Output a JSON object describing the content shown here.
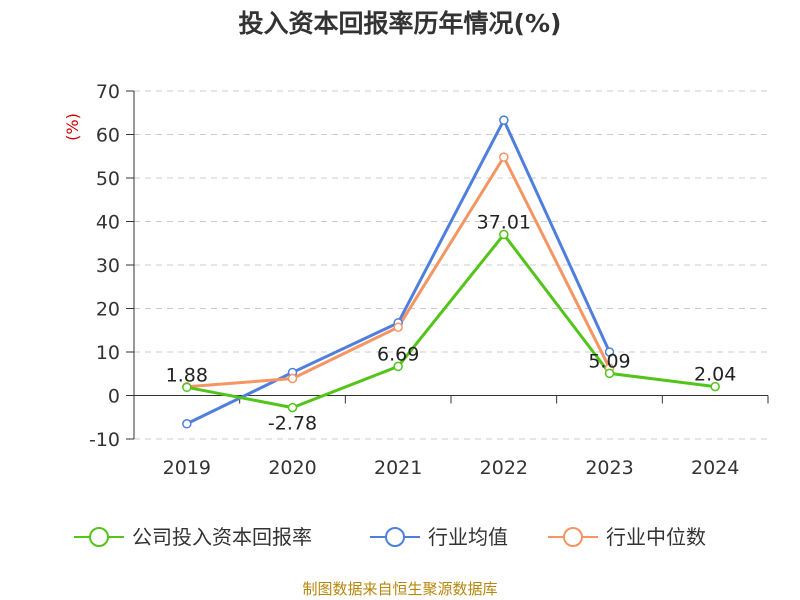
{
  "chart_data": {
    "type": "line",
    "title": "投入资本回报率历年情况(%)",
    "ylabel": "(%)",
    "categories": [
      "2019",
      "2020",
      "2021",
      "2022",
      "2023",
      "2024"
    ],
    "ylim": [
      -10,
      70
    ],
    "yticks": [
      -10,
      0,
      10,
      20,
      30,
      40,
      50,
      60,
      70
    ],
    "grid": true,
    "legend_position": "bottom",
    "series": [
      {
        "name": "公司投入资本回报率",
        "color": "#52c41a",
        "values": [
          1.88,
          -2.78,
          6.69,
          37.01,
          5.09,
          2.04
        ],
        "labels": [
          "1.88",
          "-2.78",
          "6.69",
          "37.01",
          "5.09",
          "2.04"
        ]
      },
      {
        "name": "行业均值",
        "color": "#4f7fdc",
        "values": [
          -6.5,
          5.3,
          16.7,
          63.3,
          10.0,
          null
        ]
      },
      {
        "name": "行业中位数",
        "color": "#f59563",
        "values": [
          2.0,
          3.9,
          15.7,
          54.8,
          6.3,
          null
        ]
      }
    ]
  },
  "source_text": "制图数据来自恒生聚源数据库"
}
